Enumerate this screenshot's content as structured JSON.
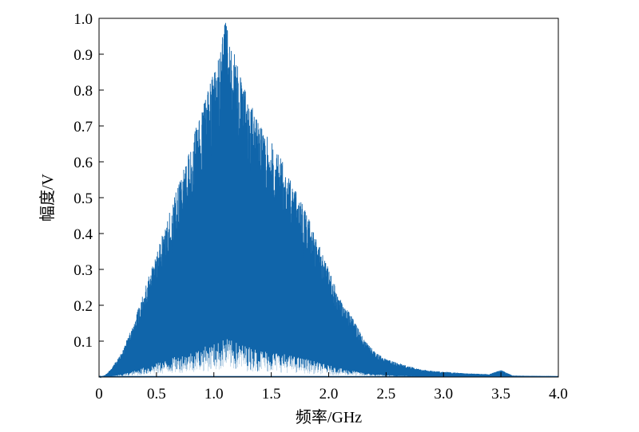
{
  "chart_data": {
    "type": "area",
    "xlabel": "频率/GHz",
    "ylabel": "幅度/V",
    "xlim": [
      0,
      4.0
    ],
    "ylim": [
      0,
      1.0
    ],
    "x_ticks": [
      0,
      0.5,
      1.0,
      1.5,
      2.0,
      2.5,
      3.0,
      3.5,
      4.0
    ],
    "x_tick_labels": [
      "0",
      "0.5",
      "1.0",
      "1.5",
      "2.0",
      "2.5",
      "3.0",
      "3.5",
      "4.0"
    ],
    "y_ticks": [
      0.1,
      0.2,
      0.3,
      0.4,
      0.5,
      0.6,
      0.7,
      0.8,
      0.9,
      1.0
    ],
    "y_tick_labels": [
      "0.1",
      "0.2",
      "0.3",
      "0.4",
      "0.5",
      "0.6",
      "0.7",
      "0.8",
      "0.9",
      "1.0"
    ],
    "grid": false,
    "series_color": "#1065aa",
    "envelope": {
      "x": [
        0.0,
        0.05,
        0.1,
        0.2,
        0.3,
        0.4,
        0.5,
        0.6,
        0.7,
        0.8,
        0.9,
        1.0,
        1.05,
        1.1,
        1.15,
        1.2,
        1.3,
        1.4,
        1.5,
        1.6,
        1.7,
        1.8,
        1.9,
        2.0,
        2.1,
        2.2,
        2.3,
        2.4,
        2.5,
        2.6,
        2.7,
        2.8,
        2.9,
        3.0,
        3.2,
        3.4,
        3.5,
        3.6,
        3.8,
        4.0
      ],
      "y": [
        0.0,
        0.005,
        0.02,
        0.07,
        0.15,
        0.25,
        0.35,
        0.45,
        0.55,
        0.65,
        0.75,
        0.85,
        0.9,
        1.0,
        0.93,
        0.88,
        0.78,
        0.7,
        0.66,
        0.6,
        0.53,
        0.47,
        0.38,
        0.3,
        0.22,
        0.17,
        0.11,
        0.07,
        0.05,
        0.04,
        0.03,
        0.022,
        0.017,
        0.015,
        0.01,
        0.008,
        0.02,
        0.004,
        0.003,
        0.002
      ]
    }
  }
}
